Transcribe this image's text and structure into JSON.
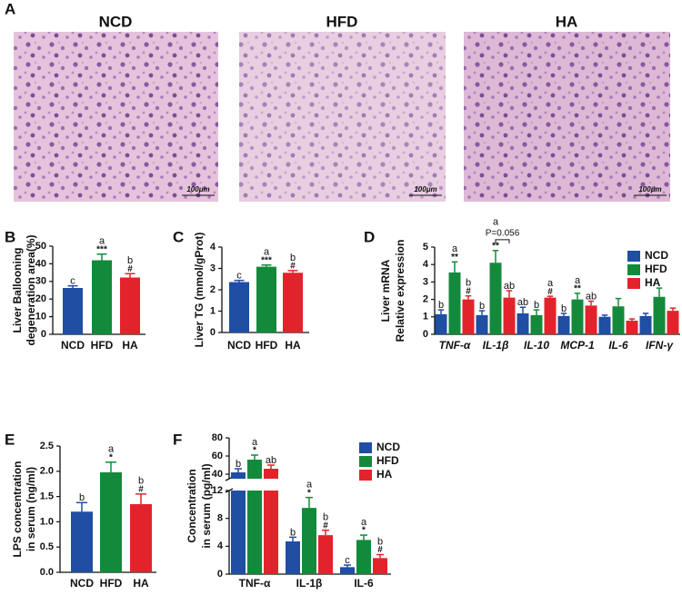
{
  "panel_a": {
    "label": "A",
    "images": [
      {
        "label": "NCD",
        "scale_bar": "100μm"
      },
      {
        "label": "HFD",
        "scale_bar": "100μm"
      },
      {
        "label": "HA",
        "scale_bar": "100μm"
      }
    ]
  },
  "chart_data": [
    {
      "type": "bar",
      "panel_label": "B",
      "ylabel": [
        "Liver Ballooning",
        "degeneration area(%)"
      ],
      "categories": [
        "NCD",
        "HFD",
        "HA"
      ],
      "values": [
        26.3,
        42,
        32.2
      ],
      "errors": [
        1.2,
        3.5,
        2.2
      ],
      "colors": [
        "#1f4ea3",
        "#138a3b",
        "#e3232b"
      ],
      "letters": [
        "c",
        "a",
        "b"
      ],
      "marks": [
        null,
        "***",
        "#"
      ],
      "ylim": [
        0,
        50
      ],
      "yticks": [
        0,
        10,
        20,
        30,
        40,
        50
      ]
    },
    {
      "type": "bar",
      "panel_label": "C",
      "ylabel": [
        "Liver TG (mmol/gProt)"
      ],
      "categories": [
        "NCD",
        "HFD",
        "HA"
      ],
      "values": [
        2.36,
        3.08,
        2.8
      ],
      "errors": [
        0.08,
        0.08,
        0.1
      ],
      "colors": [
        "#1f4ea3",
        "#138a3b",
        "#e3232b"
      ],
      "letters": [
        "c",
        "a",
        "b"
      ],
      "marks": [
        null,
        "***",
        "#"
      ],
      "ylim": [
        0,
        4
      ],
      "yticks": [
        0,
        1,
        2,
        3,
        4
      ]
    },
    {
      "type": "bar",
      "panel_label": "D",
      "ylabel": [
        "Liver mRNA",
        "Relative expression"
      ],
      "categories": [
        "TNF-α",
        "IL-1β",
        "IL-10",
        "MCP-1",
        "IL-6",
        "IFN-γ"
      ],
      "series": [
        {
          "name": "NCD",
          "color": "#1f4ea3",
          "values": [
            1.15,
            1.1,
            1.2,
            1.05,
            1.0,
            1.05
          ],
          "errors": [
            0.25,
            0.25,
            0.35,
            0.15,
            0.1,
            0.15
          ],
          "letters": [
            "b",
            "b",
            "ab",
            "b",
            null,
            null
          ],
          "marks": [
            null,
            null,
            null,
            null,
            null,
            null
          ]
        },
        {
          "name": "HFD",
          "color": "#138a3b",
          "values": [
            3.55,
            4.1,
            1.1,
            2.0,
            1.6,
            2.15
          ],
          "errors": [
            0.6,
            0.7,
            0.3,
            0.35,
            0.45,
            0.5
          ],
          "letters": [
            "a",
            "a",
            "b",
            "a",
            null,
            null
          ],
          "marks": [
            "**",
            "**",
            null,
            "**",
            null,
            null
          ]
        },
        {
          "name": "HA",
          "color": "#e3232b",
          "values": [
            2.0,
            2.1,
            2.1,
            1.65,
            0.78,
            1.35
          ],
          "errors": [
            0.2,
            0.4,
            0.08,
            0.25,
            0.1,
            0.15
          ],
          "letters": [
            "b",
            "ab",
            "a",
            "ab",
            null,
            null
          ],
          "marks": [
            "#",
            null,
            "#",
            null,
            null,
            null
          ]
        }
      ],
      "annotation": "P=0.056",
      "legend": "upper right",
      "ylim": [
        0,
        5
      ],
      "yticks": [
        0,
        1,
        2,
        3,
        4,
        5
      ]
    },
    {
      "type": "bar",
      "panel_label": "E",
      "ylabel": [
        "LPS concentration",
        "in serum (ng/ml)"
      ],
      "categories": [
        "NCD",
        "HFD",
        "HA"
      ],
      "values": [
        1.2,
        1.98,
        1.35
      ],
      "errors": [
        0.18,
        0.2,
        0.2
      ],
      "colors": [
        "#1f4ea3",
        "#138a3b",
        "#e3232b"
      ],
      "letters": [
        "b",
        "a",
        "b"
      ],
      "marks": [
        null,
        "*",
        "#"
      ],
      "ylim": [
        0,
        2.5
      ],
      "yticks": [
        {
          "value": 0,
          "label": "0.0"
        },
        0.5,
        {
          "value": 1,
          "label": "1.0"
        },
        1.5,
        {
          "value": 2,
          "label": "2.0"
        },
        2.5
      ]
    },
    {
      "type": "bar",
      "panel_label": "F",
      "ylabel": [
        "Concentration",
        "in serum (pg/ml)"
      ],
      "categories": [
        "TNF-α",
        "IL-1β",
        "IL-6"
      ],
      "series": [
        {
          "name": "NCD",
          "color": "#1f4ea3",
          "values": [
            42,
            4.7,
            1.0
          ],
          "errors": [
            4,
            0.6,
            0.3
          ],
          "letters": [
            "b",
            "b",
            "c"
          ],
          "marks": [
            null,
            null,
            null
          ]
        },
        {
          "name": "HFD",
          "color": "#138a3b",
          "values": [
            56,
            9.5,
            4.9
          ],
          "errors": [
            5,
            1.5,
            0.7
          ],
          "letters": [
            "a",
            "a",
            "a"
          ],
          "marks": [
            "*",
            "*",
            "*"
          ]
        },
        {
          "name": "HA",
          "color": "#e3232b",
          "values": [
            46,
            5.6,
            2.3
          ],
          "errors": [
            4,
            0.7,
            0.5
          ],
          "letters": [
            "ab",
            "b",
            "b"
          ],
          "marks": [
            null,
            "#",
            "#"
          ]
        }
      ],
      "legend": "upper right",
      "segments": [
        {
          "ylim": [
            0,
            12
          ],
          "yticks": [
            0,
            4,
            8,
            12
          ]
        },
        {
          "ylim": [
            35,
            80
          ],
          "yticks": [
            40,
            60,
            80
          ]
        }
      ]
    }
  ]
}
